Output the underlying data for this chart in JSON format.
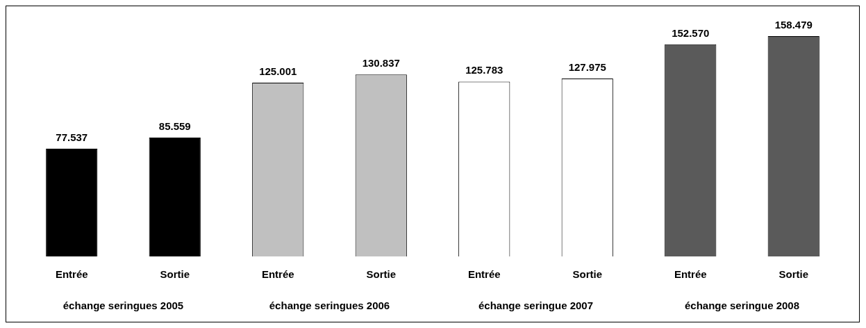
{
  "chart_data": {
    "type": "bar",
    "categories": [
      "Entrée",
      "Sortie",
      "Entrée",
      "Sortie",
      "Entrée",
      "Sortie",
      "Entrée",
      "Sortie"
    ],
    "values": [
      77537,
      85559,
      125001,
      130837,
      125783,
      127975,
      152570,
      158479
    ],
    "value_labels": [
      "77.537",
      "85.559",
      "125.001",
      "130.837",
      "125.783",
      "127.975",
      "152.570",
      "158.479"
    ],
    "colors": [
      "#000000",
      "#000000",
      "#c0c0c0",
      "#c0c0c0",
      "#ffffff",
      "#ffffff",
      "#5a5a5a",
      "#5a5a5a"
    ],
    "annotations": [
      "échange seringues 2005",
      "échange seringues 2006",
      "échange seringue 2007",
      "échange seringue 2008"
    ],
    "grid": false,
    "legend": false
  }
}
